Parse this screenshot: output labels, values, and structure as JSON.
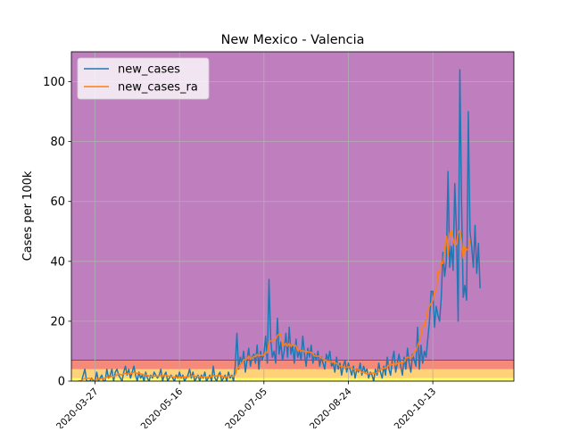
{
  "chart_data": {
    "type": "line",
    "title": "New Mexico - Valencia",
    "xlabel": "",
    "ylabel": "Cases per 100k",
    "start_date": "2020-03-17",
    "x_range": [
      "2020-03-13",
      "2020-11-30"
    ],
    "ylim": [
      0,
      110
    ],
    "grid": true,
    "legend_position": "top-left",
    "x_ticks": [
      "2020-03-27",
      "2020-05-16",
      "2020-07-05",
      "2020-08-24",
      "2020-10-13"
    ],
    "y_ticks": [
      0,
      20,
      40,
      60,
      80,
      100
    ],
    "bands": [
      {
        "from": 0,
        "to": 1,
        "color": "#ffff66"
      },
      {
        "from": 1,
        "to": 4,
        "color": "#ffd27a"
      },
      {
        "from": 4,
        "to": 7,
        "color": "#f58a7a"
      },
      {
        "from": 7,
        "to": 110,
        "color": "#bf7fbf"
      }
    ],
    "band_line": {
      "value": 7,
      "color": "#d62728"
    },
    "series": [
      {
        "name": "new_cases",
        "color": "#1f77b4",
        "values": [
          0,
          0,
          0,
          2,
          4,
          0,
          0,
          0,
          1,
          0,
          0,
          3,
          0,
          1,
          2,
          0,
          0,
          4,
          1,
          2,
          4,
          0,
          3,
          4,
          2,
          1,
          0,
          3,
          5,
          2,
          4,
          1,
          3,
          5,
          2,
          0,
          3,
          1,
          2,
          0,
          3,
          1,
          0,
          2,
          1,
          3,
          2,
          1,
          2,
          4,
          0,
          2,
          3,
          0,
          1,
          2,
          1,
          0,
          2,
          1,
          3,
          1,
          2,
          0,
          1,
          2,
          4,
          1,
          3,
          0,
          1,
          2,
          0,
          2,
          1,
          3,
          0,
          1,
          2,
          0,
          5,
          1,
          0,
          2,
          3,
          0,
          1,
          2,
          0,
          3,
          1,
          2,
          0,
          5,
          16,
          4,
          8,
          6,
          10,
          3,
          7,
          11,
          5,
          8,
          9,
          6,
          12,
          4,
          10,
          7,
          9,
          15,
          6,
          34,
          14,
          8,
          10,
          6,
          21,
          9,
          13,
          7,
          10,
          16,
          8,
          18,
          9,
          12,
          6,
          14,
          8,
          10,
          7,
          15,
          9,
          5,
          11,
          8,
          12,
          6,
          9,
          7,
          10,
          5,
          8,
          6,
          4,
          9,
          7,
          10,
          5,
          6,
          3,
          8,
          4,
          6,
          2,
          5,
          7,
          3,
          6,
          4,
          2,
          5,
          1,
          4,
          3,
          6,
          2,
          5,
          3,
          4,
          1,
          3,
          2,
          0,
          4,
          2,
          6,
          3,
          1,
          5,
          2,
          8,
          4,
          2,
          7,
          10,
          3,
          6,
          9,
          5,
          2,
          8,
          4,
          11,
          6,
          3,
          9,
          7,
          5,
          18,
          4,
          12,
          6,
          10,
          8,
          14,
          20,
          30,
          30,
          18,
          25,
          22,
          20,
          28,
          43,
          35,
          40,
          70,
          38,
          45,
          37,
          66,
          50,
          20,
          104,
          60,
          28,
          32,
          27,
          90,
          50,
          45,
          38,
          52,
          36,
          46,
          31
        ]
      },
      {
        "name": "new_cases_ra",
        "color": "#ff7f0e",
        "values": [
          0,
          0,
          0.3,
          0.6,
          0.9,
          0.9,
          0.9,
          0.9,
          0.7,
          0.5,
          0.3,
          0.6,
          0.6,
          0.7,
          0.9,
          0.9,
          0.9,
          1.4,
          1.3,
          1.4,
          1.7,
          1.4,
          1.8,
          2.1,
          2.4,
          2.2,
          2.1,
          2.4,
          2.6,
          2.4,
          2.7,
          2.6,
          2.6,
          3,
          2.7,
          2.6,
          2.6,
          2.4,
          2.3,
          2.1,
          2.1,
          1.9,
          1.7,
          1.6,
          1.6,
          1.7,
          1.7,
          1.6,
          1.7,
          1.9,
          1.7,
          1.9,
          2,
          1.7,
          1.6,
          1.6,
          1.4,
          1.3,
          1.3,
          1.3,
          1.4,
          1.3,
          1.4,
          1.3,
          1.4,
          1.4,
          1.7,
          1.6,
          1.9,
          1.6,
          1.6,
          1.6,
          1.4,
          1.4,
          1.4,
          1.6,
          1.3,
          1.3,
          1.4,
          1.4,
          1.9,
          1.7,
          1.7,
          1.9,
          1.9,
          1.7,
          1.4,
          1.4,
          1.3,
          1.7,
          1.7,
          1.6,
          1.4,
          2.1,
          4,
          4.5,
          5.5,
          6.1,
          7.1,
          7.1,
          7.6,
          8.4,
          7.3,
          7.7,
          8.3,
          8.1,
          8.9,
          8.4,
          8.7,
          8.6,
          8.7,
          9.8,
          9.4,
          13.4,
          13.4,
          13.4,
          13.9,
          14.1,
          15.3,
          15.7,
          15.9,
          11.9,
          11.9,
          12.7,
          11.7,
          12.6,
          11.6,
          12.1,
          11.7,
          11.9,
          10.1,
          10.6,
          9.9,
          10.3,
          9.9,
          9.4,
          9.9,
          9.6,
          9.7,
          9,
          8.4,
          8.3,
          8.3,
          8.3,
          7.7,
          7.4,
          7,
          6.9,
          6.6,
          6.7,
          6.3,
          6.4,
          6,
          6,
          5.6,
          4.9,
          4.9,
          4.7,
          4.4,
          4.6,
          4.9,
          4.6,
          4.3,
          4,
          4,
          3.6,
          3.7,
          3.6,
          2.9,
          3.1,
          2.6,
          2.4,
          2.4,
          2.6,
          2.7,
          2.7,
          2.6,
          2.9,
          3.3,
          3.9,
          3.9,
          4.3,
          4.4,
          4.7,
          5.3,
          5.3,
          5.6,
          6.1,
          5.4,
          5.9,
          6.3,
          6,
          6.1,
          6.4,
          7.6,
          8,
          7.9,
          8.1,
          8.1,
          10.1,
          10.1,
          11.9,
          13.3,
          15.4,
          18.7,
          18.1,
          20.6,
          23.6,
          25,
          26,
          26.9,
          29.7,
          29.9,
          36.7,
          36.3,
          39.6,
          39.3,
          43.7,
          48.4,
          42,
          49.4,
          50.4,
          47.6,
          45.1,
          45.7,
          49.6,
          50.3,
          47,
          41,
          45.1,
          43.8,
          44.1,
          47.3
        ]
      }
    ]
  }
}
